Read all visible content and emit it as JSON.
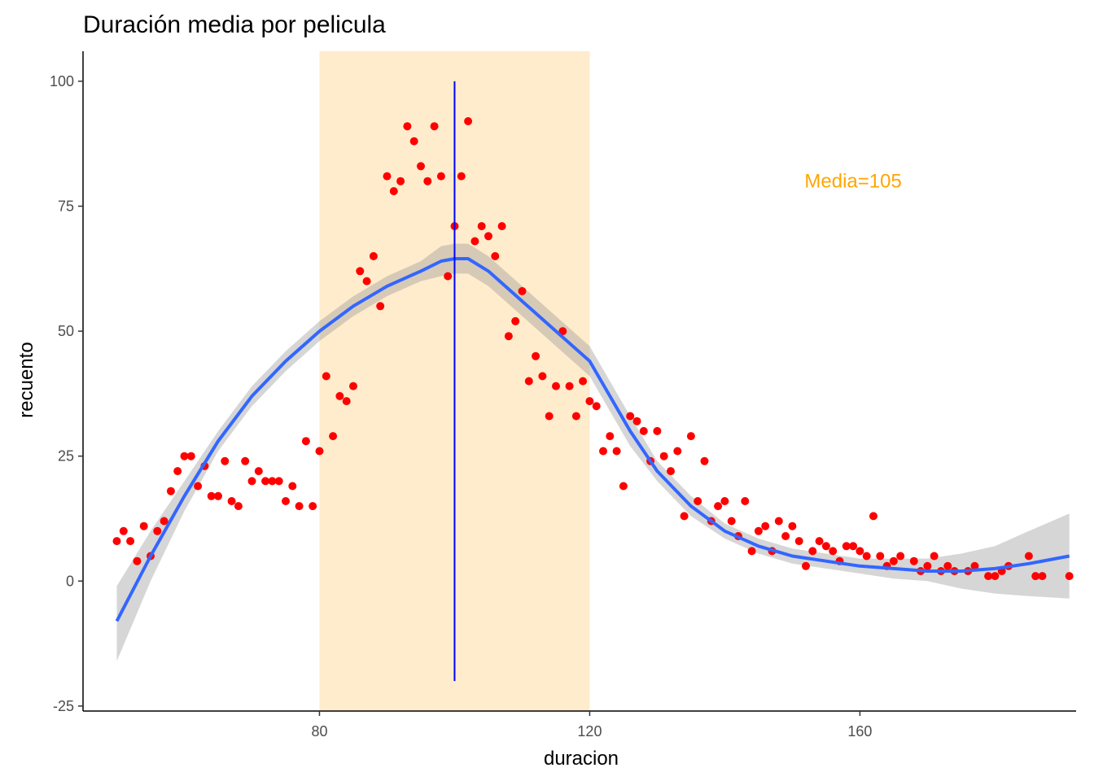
{
  "chart_data": {
    "type": "scatter",
    "title": "Duración media por pelicula",
    "xlabel": "duracion",
    "ylabel": "recuento",
    "xlim": [
      45,
      192
    ],
    "ylim": [
      -26,
      106
    ],
    "x_ticks": [
      {
        "value": 80,
        "label": "80"
      },
      {
        "value": 120,
        "label": "120"
      },
      {
        "value": 160,
        "label": "160"
      }
    ],
    "y_ticks": [
      {
        "value": -25,
        "label": "-25"
      },
      {
        "value": 0,
        "label": "0"
      },
      {
        "value": 25,
        "label": "25"
      },
      {
        "value": 50,
        "label": "50"
      },
      {
        "value": 75,
        "label": "75"
      },
      {
        "value": 100,
        "label": "100"
      }
    ],
    "grid": false,
    "highlight_band": {
      "x": [
        80,
        120
      ],
      "color": "#FFECCC"
    },
    "vertical_line": {
      "x": 100,
      "y": [
        -20,
        100
      ],
      "color": "#0000FF"
    },
    "annotation": {
      "text": "Media=105",
      "x": 159,
      "y": 80,
      "color": "#FFA500"
    },
    "points_color": "#FF0000",
    "points": [
      [
        50,
        8
      ],
      [
        51,
        10
      ],
      [
        52,
        8
      ],
      [
        53,
        4
      ],
      [
        54,
        11
      ],
      [
        55,
        5
      ],
      [
        56,
        10
      ],
      [
        57,
        12
      ],
      [
        58,
        18
      ],
      [
        59,
        22
      ],
      [
        60,
        25
      ],
      [
        61,
        25
      ],
      [
        62,
        19
      ],
      [
        63,
        23
      ],
      [
        64,
        17
      ],
      [
        65,
        17
      ],
      [
        66,
        24
      ],
      [
        67,
        16
      ],
      [
        68,
        15
      ],
      [
        69,
        24
      ],
      [
        70,
        20
      ],
      [
        71,
        22
      ],
      [
        72,
        20
      ],
      [
        73,
        20
      ],
      [
        74,
        20
      ],
      [
        75,
        16
      ],
      [
        76,
        19
      ],
      [
        77,
        15
      ],
      [
        78,
        28
      ],
      [
        79,
        15
      ],
      [
        80,
        26
      ],
      [
        81,
        41
      ],
      [
        82,
        29
      ],
      [
        83,
        37
      ],
      [
        84,
        36
      ],
      [
        85,
        39
      ],
      [
        86,
        62
      ],
      [
        87,
        60
      ],
      [
        88,
        65
      ],
      [
        89,
        55
      ],
      [
        90,
        81
      ],
      [
        91,
        78
      ],
      [
        92,
        80
      ],
      [
        93,
        91
      ],
      [
        94,
        88
      ],
      [
        95,
        83
      ],
      [
        96,
        80
      ],
      [
        97,
        91
      ],
      [
        98,
        81
      ],
      [
        99,
        61
      ],
      [
        100,
        71
      ],
      [
        101,
        81
      ],
      [
        102,
        92
      ],
      [
        103,
        68
      ],
      [
        104,
        71
      ],
      [
        105,
        69
      ],
      [
        106,
        65
      ],
      [
        107,
        71
      ],
      [
        108,
        49
      ],
      [
        109,
        52
      ],
      [
        110,
        58
      ],
      [
        111,
        40
      ],
      [
        112,
        45
      ],
      [
        113,
        41
      ],
      [
        114,
        33
      ],
      [
        115,
        39
      ],
      [
        116,
        50
      ],
      [
        117,
        39
      ],
      [
        118,
        33
      ],
      [
        119,
        40
      ],
      [
        120,
        36
      ],
      [
        121,
        35
      ],
      [
        122,
        26
      ],
      [
        123,
        29
      ],
      [
        124,
        26
      ],
      [
        125,
        19
      ],
      [
        126,
        33
      ],
      [
        127,
        32
      ],
      [
        128,
        30
      ],
      [
        129,
        24
      ],
      [
        130,
        30
      ],
      [
        131,
        25
      ],
      [
        132,
        22
      ],
      [
        133,
        26
      ],
      [
        134,
        13
      ],
      [
        135,
        29
      ],
      [
        136,
        16
      ],
      [
        137,
        24
      ],
      [
        138,
        12
      ],
      [
        139,
        15
      ],
      [
        140,
        16
      ],
      [
        141,
        12
      ],
      [
        142,
        9
      ],
      [
        143,
        16
      ],
      [
        144,
        6
      ],
      [
        145,
        10
      ],
      [
        146,
        11
      ],
      [
        147,
        6
      ],
      [
        148,
        12
      ],
      [
        149,
        9
      ],
      [
        150,
        11
      ],
      [
        151,
        8
      ],
      [
        152,
        3
      ],
      [
        153,
        6
      ],
      [
        154,
        8
      ],
      [
        155,
        7
      ],
      [
        156,
        6
      ],
      [
        157,
        4
      ],
      [
        158,
        7
      ],
      [
        159,
        7
      ],
      [
        160,
        6
      ],
      [
        161,
        5
      ],
      [
        162,
        13
      ],
      [
        163,
        5
      ],
      [
        164,
        3
      ],
      [
        165,
        4
      ],
      [
        166,
        5
      ],
      [
        168,
        4
      ],
      [
        169,
        2
      ],
      [
        170,
        3
      ],
      [
        171,
        5
      ],
      [
        172,
        2
      ],
      [
        173,
        3
      ],
      [
        174,
        2
      ],
      [
        176,
        2
      ],
      [
        177,
        3
      ],
      [
        179,
        1
      ],
      [
        180,
        1
      ],
      [
        181,
        2
      ],
      [
        182,
        3
      ],
      [
        185,
        5
      ],
      [
        186,
        1
      ],
      [
        187,
        1
      ],
      [
        191,
        1
      ]
    ],
    "smooth": {
      "color": "#3366FF",
      "band_color": "#999999",
      "points": [
        [
          50,
          -8,
          -16,
          -1
        ],
        [
          55,
          5,
          0,
          10
        ],
        [
          60,
          17,
          14,
          20
        ],
        [
          65,
          28,
          26,
          30
        ],
        [
          70,
          37,
          35,
          39
        ],
        [
          75,
          44,
          42,
          46
        ],
        [
          80,
          50,
          48,
          52
        ],
        [
          85,
          55,
          53,
          57
        ],
        [
          90,
          59,
          57,
          61
        ],
        [
          95,
          62,
          60,
          64
        ],
        [
          98,
          64,
          61,
          67
        ],
        [
          100,
          64.5,
          61.5,
          67.5
        ],
        [
          102,
          64.5,
          61.5,
          67.5
        ],
        [
          105,
          62,
          59,
          65
        ],
        [
          110,
          56,
          53,
          59
        ],
        [
          115,
          50,
          47,
          53
        ],
        [
          120,
          44,
          41,
          47
        ],
        [
          123,
          37,
          34,
          40
        ],
        [
          126,
          30,
          27,
          33
        ],
        [
          130,
          22,
          20,
          24
        ],
        [
          135,
          15,
          13,
          17
        ],
        [
          140,
          10,
          8.5,
          11.5
        ],
        [
          145,
          7,
          5.5,
          8.5
        ],
        [
          150,
          5,
          3.5,
          6.5
        ],
        [
          155,
          4,
          2.5,
          5.5
        ],
        [
          160,
          3,
          1.5,
          4.5
        ],
        [
          165,
          2.5,
          0.5,
          4.5
        ],
        [
          170,
          2,
          0,
          4.5
        ],
        [
          175,
          2,
          -1.5,
          5.5
        ],
        [
          180,
          2.5,
          -2.5,
          7
        ],
        [
          185,
          3.5,
          -3,
          10
        ],
        [
          191,
          5,
          -3.5,
          13.5
        ]
      ]
    }
  }
}
